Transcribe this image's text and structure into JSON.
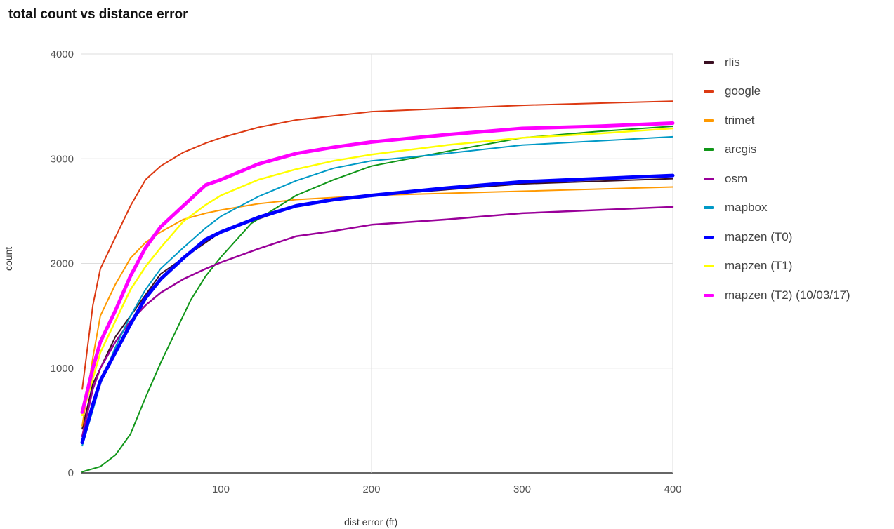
{
  "title": "total count vs distance error",
  "chart_data": {
    "type": "line",
    "title": "total count vs distance error",
    "xlabel": "dist error (ft)",
    "ylabel": "count",
    "xlim": [
      7,
      400
    ],
    "ylim": [
      0,
      4000
    ],
    "xticks": [
      100,
      200,
      300,
      400
    ],
    "yticks": [
      0,
      1000,
      2000,
      3000,
      4000
    ],
    "grid": true,
    "legend_position": "right",
    "series": [
      {
        "name": "rlis",
        "color": "#3a0f22",
        "width": 2,
        "points": [
          [
            8,
            420
          ],
          [
            15,
            850
          ],
          [
            30,
            1300
          ],
          [
            60,
            1900
          ],
          [
            100,
            2300
          ],
          [
            150,
            2550
          ],
          [
            200,
            2650
          ],
          [
            300,
            2760
          ],
          [
            400,
            2810
          ]
        ]
      },
      {
        "name": "google",
        "color": "#dc3912",
        "width": 2,
        "points": [
          [
            8,
            800
          ],
          [
            15,
            1600
          ],
          [
            20,
            1950
          ],
          [
            30,
            2250
          ],
          [
            40,
            2550
          ],
          [
            50,
            2800
          ],
          [
            60,
            2930
          ],
          [
            75,
            3060
          ],
          [
            90,
            3150
          ],
          [
            100,
            3200
          ],
          [
            125,
            3300
          ],
          [
            150,
            3370
          ],
          [
            175,
            3410
          ],
          [
            200,
            3450
          ],
          [
            250,
            3480
          ],
          [
            300,
            3510
          ],
          [
            350,
            3530
          ],
          [
            400,
            3550
          ]
        ]
      },
      {
        "name": "trimet",
        "color": "#ff9900",
        "width": 2,
        "points": [
          [
            8,
            450
          ],
          [
            15,
            1100
          ],
          [
            20,
            1500
          ],
          [
            30,
            1800
          ],
          [
            40,
            2050
          ],
          [
            50,
            2200
          ],
          [
            60,
            2300
          ],
          [
            75,
            2420
          ],
          [
            90,
            2480
          ],
          [
            100,
            2510
          ],
          [
            125,
            2570
          ],
          [
            150,
            2610
          ],
          [
            200,
            2650
          ],
          [
            250,
            2670
          ],
          [
            300,
            2690
          ],
          [
            350,
            2710
          ],
          [
            400,
            2730
          ]
        ]
      },
      {
        "name": "arcgis",
        "color": "#109618",
        "width": 2,
        "points": [
          [
            8,
            10
          ],
          [
            20,
            60
          ],
          [
            30,
            170
          ],
          [
            40,
            370
          ],
          [
            50,
            720
          ],
          [
            60,
            1050
          ],
          [
            70,
            1350
          ],
          [
            80,
            1650
          ],
          [
            90,
            1880
          ],
          [
            100,
            2060
          ],
          [
            120,
            2380
          ],
          [
            150,
            2650
          ],
          [
            175,
            2800
          ],
          [
            200,
            2930
          ],
          [
            250,
            3070
          ],
          [
            300,
            3200
          ],
          [
            350,
            3260
          ],
          [
            400,
            3310
          ]
        ]
      },
      {
        "name": "osm",
        "color": "#990099",
        "width": 2.5,
        "points": [
          [
            8,
            350
          ],
          [
            15,
            800
          ],
          [
            20,
            1000
          ],
          [
            30,
            1250
          ],
          [
            40,
            1450
          ],
          [
            50,
            1600
          ],
          [
            60,
            1720
          ],
          [
            75,
            1850
          ],
          [
            90,
            1950
          ],
          [
            100,
            2010
          ],
          [
            125,
            2140
          ],
          [
            150,
            2260
          ],
          [
            175,
            2310
          ],
          [
            200,
            2370
          ],
          [
            250,
            2420
          ],
          [
            300,
            2480
          ],
          [
            350,
            2510
          ],
          [
            400,
            2540
          ]
        ]
      },
      {
        "name": "mapbox",
        "color": "#0099c6",
        "width": 2,
        "points": [
          [
            8,
            260
          ],
          [
            15,
            600
          ],
          [
            20,
            850
          ],
          [
            30,
            1200
          ],
          [
            40,
            1500
          ],
          [
            50,
            1750
          ],
          [
            60,
            1950
          ],
          [
            75,
            2150
          ],
          [
            90,
            2340
          ],
          [
            100,
            2450
          ],
          [
            125,
            2640
          ],
          [
            150,
            2790
          ],
          [
            175,
            2910
          ],
          [
            200,
            2980
          ],
          [
            250,
            3050
          ],
          [
            300,
            3130
          ],
          [
            350,
            3170
          ],
          [
            400,
            3210
          ]
        ]
      },
      {
        "name": "mapzen (T0)",
        "color": "#0000ff",
        "width": 5,
        "points": [
          [
            8,
            290
          ],
          [
            15,
            650
          ],
          [
            20,
            880
          ],
          [
            30,
            1150
          ],
          [
            40,
            1420
          ],
          [
            50,
            1670
          ],
          [
            60,
            1850
          ],
          [
            75,
            2050
          ],
          [
            90,
            2230
          ],
          [
            100,
            2300
          ],
          [
            125,
            2440
          ],
          [
            150,
            2550
          ],
          [
            175,
            2610
          ],
          [
            200,
            2650
          ],
          [
            250,
            2720
          ],
          [
            300,
            2780
          ],
          [
            350,
            2810
          ],
          [
            400,
            2840
          ]
        ]
      },
      {
        "name": "mapzen (T1)",
        "color": "#ffff00",
        "width": 2.5,
        "points": [
          [
            8,
            550
          ],
          [
            15,
            900
          ],
          [
            20,
            1150
          ],
          [
            30,
            1450
          ],
          [
            40,
            1750
          ],
          [
            50,
            1970
          ],
          [
            60,
            2150
          ],
          [
            75,
            2400
          ],
          [
            90,
            2560
          ],
          [
            100,
            2650
          ],
          [
            125,
            2800
          ],
          [
            150,
            2900
          ],
          [
            175,
            2980
          ],
          [
            200,
            3040
          ],
          [
            250,
            3130
          ],
          [
            300,
            3200
          ],
          [
            350,
            3240
          ],
          [
            400,
            3290
          ]
        ]
      },
      {
        "name": "mapzen (T2) (10/03/17)",
        "color": "#ff00ff",
        "width": 5,
        "points": [
          [
            8,
            580
          ],
          [
            15,
            1000
          ],
          [
            20,
            1250
          ],
          [
            30,
            1550
          ],
          [
            40,
            1880
          ],
          [
            50,
            2150
          ],
          [
            60,
            2350
          ],
          [
            75,
            2550
          ],
          [
            90,
            2750
          ],
          [
            100,
            2800
          ],
          [
            125,
            2950
          ],
          [
            150,
            3050
          ],
          [
            175,
            3110
          ],
          [
            200,
            3160
          ],
          [
            250,
            3230
          ],
          [
            300,
            3290
          ],
          [
            350,
            3310
          ],
          [
            400,
            3340
          ]
        ]
      }
    ]
  }
}
